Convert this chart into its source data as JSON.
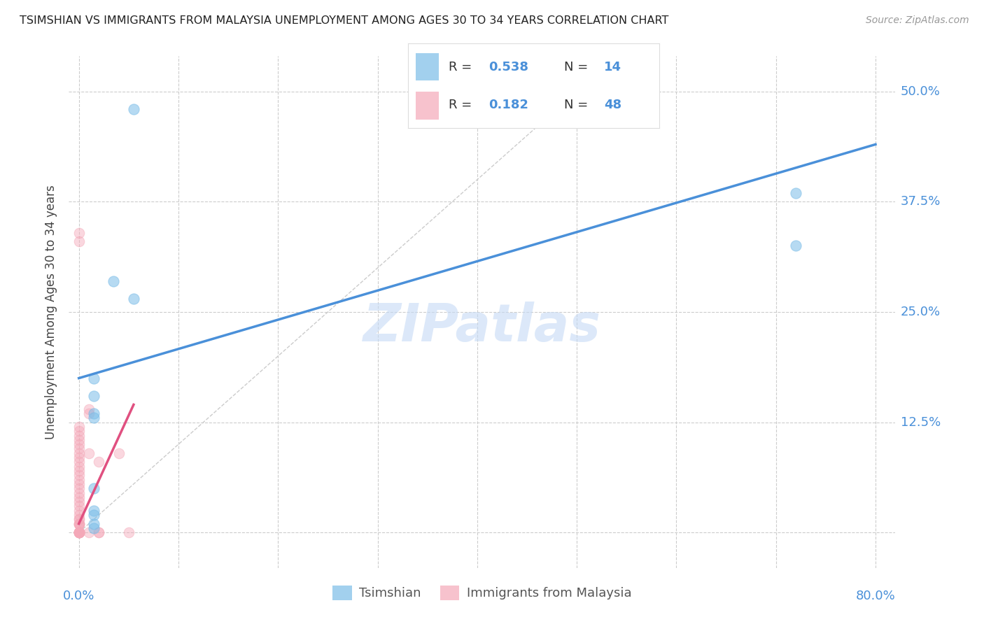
{
  "title": "TSIMSHIAN VS IMMIGRANTS FROM MALAYSIA UNEMPLOYMENT AMONG AGES 30 TO 34 YEARS CORRELATION CHART",
  "source": "Source: ZipAtlas.com",
  "ylabel_label": "Unemployment Among Ages 30 to 34 years",
  "x_ticks": [
    0.0,
    0.1,
    0.2,
    0.3,
    0.4,
    0.5,
    0.6,
    0.7,
    0.8
  ],
  "y_ticks": [
    0.0,
    0.125,
    0.25,
    0.375,
    0.5
  ],
  "y_tick_labels": [
    "",
    "12.5%",
    "25.0%",
    "37.5%",
    "50.0%"
  ],
  "xlim": [
    -0.01,
    0.82
  ],
  "ylim": [
    -0.04,
    0.54
  ],
  "blue_R": 0.538,
  "blue_N": 14,
  "pink_R": 0.182,
  "pink_N": 48,
  "blue_color": "#7bbde8",
  "pink_color": "#f4a8b8",
  "line_blue_color": "#4a90d9",
  "line_pink_color": "#e05080",
  "diag_color": "#cccccc",
  "watermark": "ZIPatlas",
  "legend_label_blue": "Tsimshian",
  "legend_label_pink": "Immigrants from Malaysia",
  "blue_x": [
    0.015,
    0.015,
    0.015,
    0.015,
    0.015,
    0.015,
    0.035,
    0.055,
    0.055,
    0.72,
    0.72,
    0.015,
    0.015,
    0.015
  ],
  "blue_y": [
    0.175,
    0.155,
    0.135,
    0.05,
    0.025,
    0.13,
    0.285,
    0.48,
    0.265,
    0.385,
    0.325,
    0.01,
    0.005,
    0.02
  ],
  "pink_x": [
    0.0,
    0.0,
    0.0,
    0.0,
    0.0,
    0.0,
    0.0,
    0.0,
    0.0,
    0.0,
    0.0,
    0.0,
    0.0,
    0.0,
    0.0,
    0.0,
    0.0,
    0.0,
    0.0,
    0.0,
    0.0,
    0.0,
    0.0,
    0.0,
    0.0,
    0.0,
    0.0,
    0.0,
    0.0,
    0.0,
    0.0,
    0.0,
    0.0,
    0.0,
    0.0,
    0.0,
    0.01,
    0.01,
    0.01,
    0.01,
    0.02,
    0.02,
    0.02,
    0.04,
    0.05,
    0.0,
    0.0,
    0.0
  ],
  "pink_y": [
    0.0,
    0.0,
    0.0,
    0.0,
    0.0,
    0.0,
    0.0,
    0.0,
    0.01,
    0.01,
    0.01,
    0.01,
    0.015,
    0.015,
    0.02,
    0.025,
    0.03,
    0.035,
    0.04,
    0.045,
    0.05,
    0.055,
    0.06,
    0.065,
    0.07,
    0.075,
    0.08,
    0.085,
    0.09,
    0.095,
    0.1,
    0.105,
    0.11,
    0.115,
    0.12,
    0.33,
    0.135,
    0.14,
    0.09,
    0.0,
    0.08,
    0.0,
    0.0,
    0.09,
    0.0,
    0.34,
    0.0,
    0.0
  ],
  "blue_line_x0": 0.0,
  "blue_line_y0": 0.175,
  "blue_line_x1": 0.8,
  "blue_line_y1": 0.44,
  "pink_line_x0": 0.0,
  "pink_line_y0": 0.01,
  "pink_line_x1": 0.055,
  "pink_line_y1": 0.145
}
